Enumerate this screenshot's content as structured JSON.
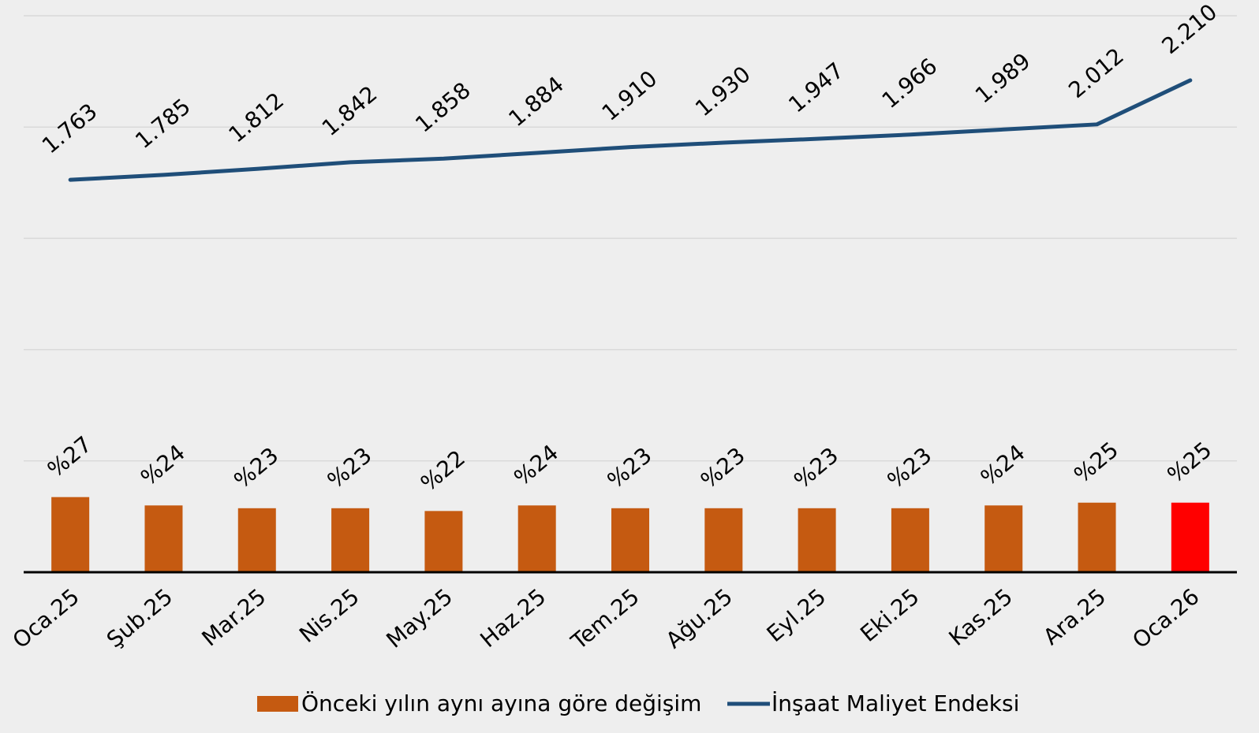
{
  "chart_data": {
    "type": "combo",
    "categories": [
      "Oca.25",
      "Şub.25",
      "Mar.25",
      "Nis.25",
      "May.25",
      "Haz.25",
      "Tem.25",
      "Ağu.25",
      "Eyl.25",
      "Eki.25",
      "Kas.25",
      "Ara.25",
      "Oca.26"
    ],
    "series": [
      {
        "name": "Önceki yılın aynı ayına göre değişim",
        "type": "bar",
        "axis": "y2",
        "color": "#c55a11",
        "colors": [
          "#c55a11",
          "#c55a11",
          "#c55a11",
          "#c55a11",
          "#c55a11",
          "#c55a11",
          "#c55a11",
          "#c55a11",
          "#c55a11",
          "#c55a11",
          "#c55a11",
          "#c55a11",
          "#ff0000"
        ],
        "values": [
          27,
          24,
          23,
          23,
          22,
          24,
          23,
          23,
          23,
          23,
          24,
          25,
          25
        ],
        "value_labels": [
          "%27",
          "%24",
          "%23",
          "%23",
          "%22",
          "%24",
          "%23",
          "%23",
          "%23",
          "%23",
          "%24",
          "%25",
          "%25"
        ]
      },
      {
        "name": "İnşaat Maliyet Endeksi",
        "type": "line",
        "color": "#1f4e79",
        "values": [
          1763,
          1785,
          1812,
          1842,
          1858,
          1884,
          1910,
          1930,
          1947,
          1966,
          1989,
          2012,
          2210
        ],
        "value_labels": [
          "1.763",
          "1.785",
          "1.812",
          "1.842",
          "1.858",
          "1.884",
          "1.910",
          "1.930",
          "1.947",
          "1.966",
          "1.989",
          "2.012",
          "2.210"
        ]
      }
    ],
    "ylim": [
      0,
      2500
    ],
    "yticks": [
      0,
      500,
      1000,
      1500,
      2000,
      2500
    ],
    "y2lim": [
      0,
      200
    ],
    "grid": true,
    "legend": "bottom"
  }
}
